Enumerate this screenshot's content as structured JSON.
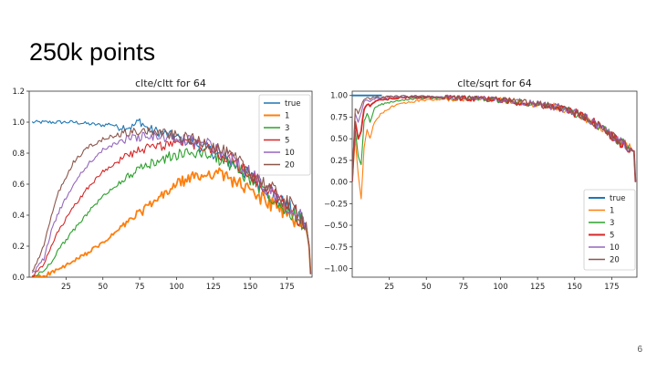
{
  "slide": {
    "title": "250k points",
    "page_number": "6"
  },
  "chart_data": [
    {
      "type": "line",
      "title": "clte/cltt for 64",
      "xlim": [
        0,
        192
      ],
      "ylim": [
        0,
        1.2
      ],
      "xticks": [
        25,
        50,
        75,
        100,
        125,
        150,
        175
      ],
      "yticks": [
        0.0,
        0.2,
        0.4,
        0.6,
        0.8,
        1.0,
        1.2
      ],
      "ytick_labels": [
        "0.0",
        "0.2",
        "0.4",
        "0.6",
        "0.8",
        "1.0",
        "1.2"
      ],
      "legend_position": "top-right",
      "series": [
        {
          "name": "true",
          "color": "#1f77b4",
          "x": [
            2,
            10,
            20,
            30,
            40,
            50,
            55,
            60,
            70,
            75,
            80,
            90,
            100,
            110,
            120,
            130,
            140,
            150,
            160,
            170,
            180,
            185,
            188,
            190,
            191
          ],
          "values": [
            1.0,
            1.0,
            1.0,
            1.0,
            0.99,
            0.98,
            0.99,
            0.97,
            0.97,
            1.01,
            0.96,
            0.93,
            0.9,
            0.87,
            0.83,
            0.78,
            0.72,
            0.65,
            0.57,
            0.49,
            0.42,
            0.38,
            0.33,
            0.2,
            0.02
          ]
        },
        {
          "name": "1",
          "color": "#ff7f0e",
          "x": [
            2,
            10,
            20,
            30,
            40,
            50,
            60,
            70,
            80,
            90,
            100,
            110,
            120,
            125,
            130,
            140,
            150,
            160,
            170,
            180,
            185,
            188,
            190,
            191
          ],
          "values": [
            0.0,
            0.01,
            0.05,
            0.1,
            0.16,
            0.22,
            0.3,
            0.38,
            0.45,
            0.52,
            0.6,
            0.64,
            0.66,
            0.68,
            0.66,
            0.62,
            0.55,
            0.5,
            0.44,
            0.38,
            0.33,
            0.3,
            0.2,
            0.02
          ]
        },
        {
          "name": "3",
          "color": "#2ca02c",
          "x": [
            2,
            10,
            15,
            20,
            30,
            40,
            50,
            60,
            70,
            80,
            90,
            100,
            110,
            120,
            130,
            140,
            150,
            160,
            170,
            180,
            185,
            188,
            190,
            191
          ],
          "values": [
            0.0,
            0.04,
            0.1,
            0.18,
            0.3,
            0.42,
            0.52,
            0.6,
            0.67,
            0.72,
            0.76,
            0.79,
            0.8,
            0.8,
            0.76,
            0.71,
            0.63,
            0.56,
            0.48,
            0.41,
            0.36,
            0.32,
            0.2,
            0.02
          ]
        },
        {
          "name": "5",
          "color": "#d62728",
          "x": [
            2,
            10,
            15,
            20,
            30,
            40,
            50,
            60,
            70,
            80,
            90,
            100,
            110,
            120,
            130,
            140,
            150,
            160,
            170,
            180,
            185,
            188,
            190,
            191
          ],
          "values": [
            0.0,
            0.08,
            0.2,
            0.3,
            0.45,
            0.58,
            0.68,
            0.75,
            0.8,
            0.83,
            0.85,
            0.86,
            0.86,
            0.84,
            0.8,
            0.74,
            0.66,
            0.58,
            0.5,
            0.42,
            0.37,
            0.33,
            0.2,
            0.02
          ]
        },
        {
          "name": "10",
          "color": "#9467bd",
          "x": [
            2,
            10,
            15,
            20,
            30,
            40,
            50,
            60,
            70,
            80,
            90,
            100,
            110,
            120,
            130,
            140,
            150,
            160,
            170,
            180,
            185,
            188,
            190,
            191
          ],
          "values": [
            0.02,
            0.12,
            0.3,
            0.42,
            0.6,
            0.73,
            0.82,
            0.87,
            0.9,
            0.91,
            0.9,
            0.89,
            0.88,
            0.86,
            0.81,
            0.75,
            0.67,
            0.59,
            0.51,
            0.43,
            0.38,
            0.34,
            0.2,
            0.02
          ]
        },
        {
          "name": "20",
          "color": "#8c564b",
          "x": [
            2,
            10,
            15,
            20,
            30,
            40,
            50,
            60,
            70,
            80,
            90,
            100,
            110,
            120,
            130,
            140,
            150,
            160,
            170,
            180,
            185,
            188,
            190,
            191
          ],
          "values": [
            0.03,
            0.2,
            0.4,
            0.55,
            0.74,
            0.84,
            0.89,
            0.92,
            0.94,
            0.94,
            0.93,
            0.91,
            0.89,
            0.87,
            0.82,
            0.76,
            0.68,
            0.6,
            0.52,
            0.44,
            0.39,
            0.35,
            0.2,
            0.02
          ]
        }
      ]
    },
    {
      "type": "line",
      "title": "clte/sqrt for 64",
      "xlim": [
        0,
        192
      ],
      "ylim": [
        -1.1,
        1.05
      ],
      "xticks": [
        25,
        50,
        75,
        100,
        125,
        150,
        175
      ],
      "yticks": [
        1.0,
        0.75,
        0.5,
        0.25,
        0.0,
        -0.25,
        -0.5,
        -0.75,
        -1.0
      ],
      "ytick_labels": [
        "1.00",
        "0.75",
        "0.50",
        "0.25",
        "0.00",
        "−0.25",
        "−0.50",
        "−0.75",
        "−1.00"
      ],
      "legend_position": "lower-right",
      "series": [
        {
          "name": "true",
          "color": "#1f77b4",
          "x": [
            0,
            15,
            20
          ],
          "values": [
            1.0,
            1.0,
            1.0
          ]
        },
        {
          "name": "1",
          "color": "#ff7f0e",
          "x": [
            0,
            2,
            4,
            6,
            8,
            10,
            12,
            15,
            20,
            25,
            30,
            40,
            50,
            60,
            75,
            90,
            100,
            110,
            125,
            140,
            150,
            160,
            170,
            180,
            185,
            188,
            190,
            191
          ],
          "values": [
            0.0,
            0.5,
            0.1,
            -0.2,
            0.4,
            0.6,
            0.5,
            0.7,
            0.8,
            0.85,
            0.9,
            0.93,
            0.95,
            0.96,
            0.96,
            0.95,
            0.95,
            0.93,
            0.9,
            0.86,
            0.8,
            0.72,
            0.6,
            0.47,
            0.42,
            0.38,
            0.35,
            0.0
          ]
        },
        {
          "name": "3",
          "color": "#2ca02c",
          "x": [
            0,
            2,
            4,
            6,
            8,
            10,
            12,
            15,
            20,
            25,
            30,
            40,
            50,
            60,
            75,
            90,
            100,
            110,
            125,
            140,
            150,
            160,
            170,
            180,
            185,
            188,
            190,
            191
          ],
          "values": [
            0.0,
            0.6,
            0.3,
            0.2,
            0.7,
            0.8,
            0.7,
            0.85,
            0.9,
            0.92,
            0.94,
            0.96,
            0.97,
            0.97,
            0.97,
            0.96,
            0.95,
            0.93,
            0.9,
            0.86,
            0.8,
            0.72,
            0.6,
            0.47,
            0.42,
            0.38,
            0.35,
            0.0
          ]
        },
        {
          "name": "5",
          "color": "#d62728",
          "x": [
            0,
            2,
            4,
            6,
            8,
            10,
            12,
            15,
            20,
            25,
            30,
            40,
            50,
            60,
            75,
            90,
            100,
            110,
            125,
            140,
            150,
            160,
            170,
            180,
            185,
            188,
            190,
            191
          ],
          "values": [
            0.0,
            0.7,
            0.5,
            0.6,
            0.85,
            0.9,
            0.88,
            0.93,
            0.95,
            0.96,
            0.97,
            0.98,
            0.98,
            0.98,
            0.97,
            0.96,
            0.95,
            0.93,
            0.9,
            0.86,
            0.8,
            0.72,
            0.6,
            0.47,
            0.42,
            0.38,
            0.35,
            0.0
          ]
        },
        {
          "name": "10",
          "color": "#9467bd",
          "x": [
            0,
            2,
            4,
            6,
            8,
            10,
            12,
            15,
            20,
            25,
            30,
            40,
            50,
            60,
            75,
            90,
            100,
            110,
            125,
            140,
            150,
            160,
            170,
            180,
            185,
            188,
            190,
            191
          ],
          "values": [
            0.0,
            0.8,
            0.7,
            0.8,
            0.92,
            0.95,
            0.94,
            0.96,
            0.97,
            0.98,
            0.98,
            0.99,
            0.99,
            0.98,
            0.97,
            0.96,
            0.95,
            0.93,
            0.9,
            0.86,
            0.8,
            0.72,
            0.6,
            0.47,
            0.42,
            0.38,
            0.35,
            0.0
          ]
        },
        {
          "name": "20",
          "color": "#8c564b",
          "x": [
            0,
            2,
            4,
            6,
            8,
            10,
            12,
            15,
            20,
            25,
            30,
            40,
            50,
            60,
            75,
            90,
            100,
            110,
            125,
            140,
            150,
            160,
            170,
            180,
            185,
            188,
            190,
            191
          ],
          "values": [
            0.0,
            0.85,
            0.8,
            0.88,
            0.95,
            0.97,
            0.96,
            0.98,
            0.98,
            0.99,
            0.99,
            0.99,
            0.99,
            0.98,
            0.97,
            0.96,
            0.95,
            0.93,
            0.9,
            0.86,
            0.8,
            0.72,
            0.6,
            0.47,
            0.42,
            0.38,
            0.35,
            0.0
          ]
        }
      ]
    }
  ]
}
